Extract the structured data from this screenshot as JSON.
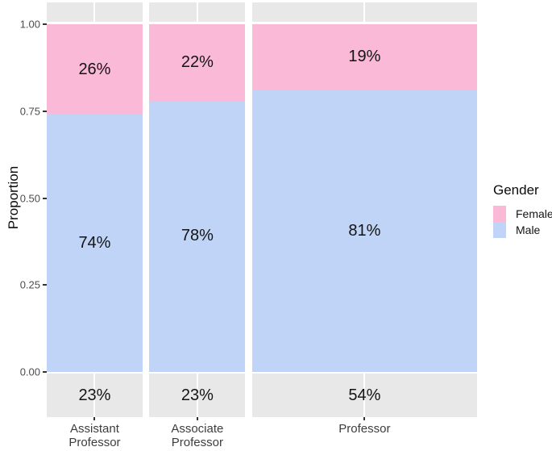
{
  "chart_data": {
    "type": "mosaic",
    "ylabel": "Proportion",
    "categories": [
      "Assistant Professor",
      "Associate Professor",
      "Professor"
    ],
    "category_label_lines": [
      [
        "Assistant",
        "Professor"
      ],
      [
        "Associate",
        "Professor"
      ],
      [
        "Professor"
      ]
    ],
    "column_width_pct": [
      23,
      23,
      54
    ],
    "column_width_labels": [
      "23%",
      "23%",
      "54%"
    ],
    "series": [
      {
        "name": "Female",
        "color": "#FAB9D7",
        "values": [
          26,
          22,
          19
        ],
        "labels": [
          "26%",
          "22%",
          "19%"
        ]
      },
      {
        "name": "Male",
        "color": "#BFD4F6",
        "values": [
          74,
          78,
          81
        ],
        "labels": [
          "74%",
          "78%",
          "81%"
        ]
      }
    ],
    "y_ticks": [
      "1.00",
      "0.75",
      "0.50",
      "0.25",
      "0.00"
    ],
    "ylim": [
      0,
      1
    ],
    "legend": {
      "title": "Gender",
      "position": "right"
    },
    "strip_color": "#E8E8E8",
    "background_color": "#FFFFFF",
    "axis_text_color": "#4D4D4D"
  }
}
